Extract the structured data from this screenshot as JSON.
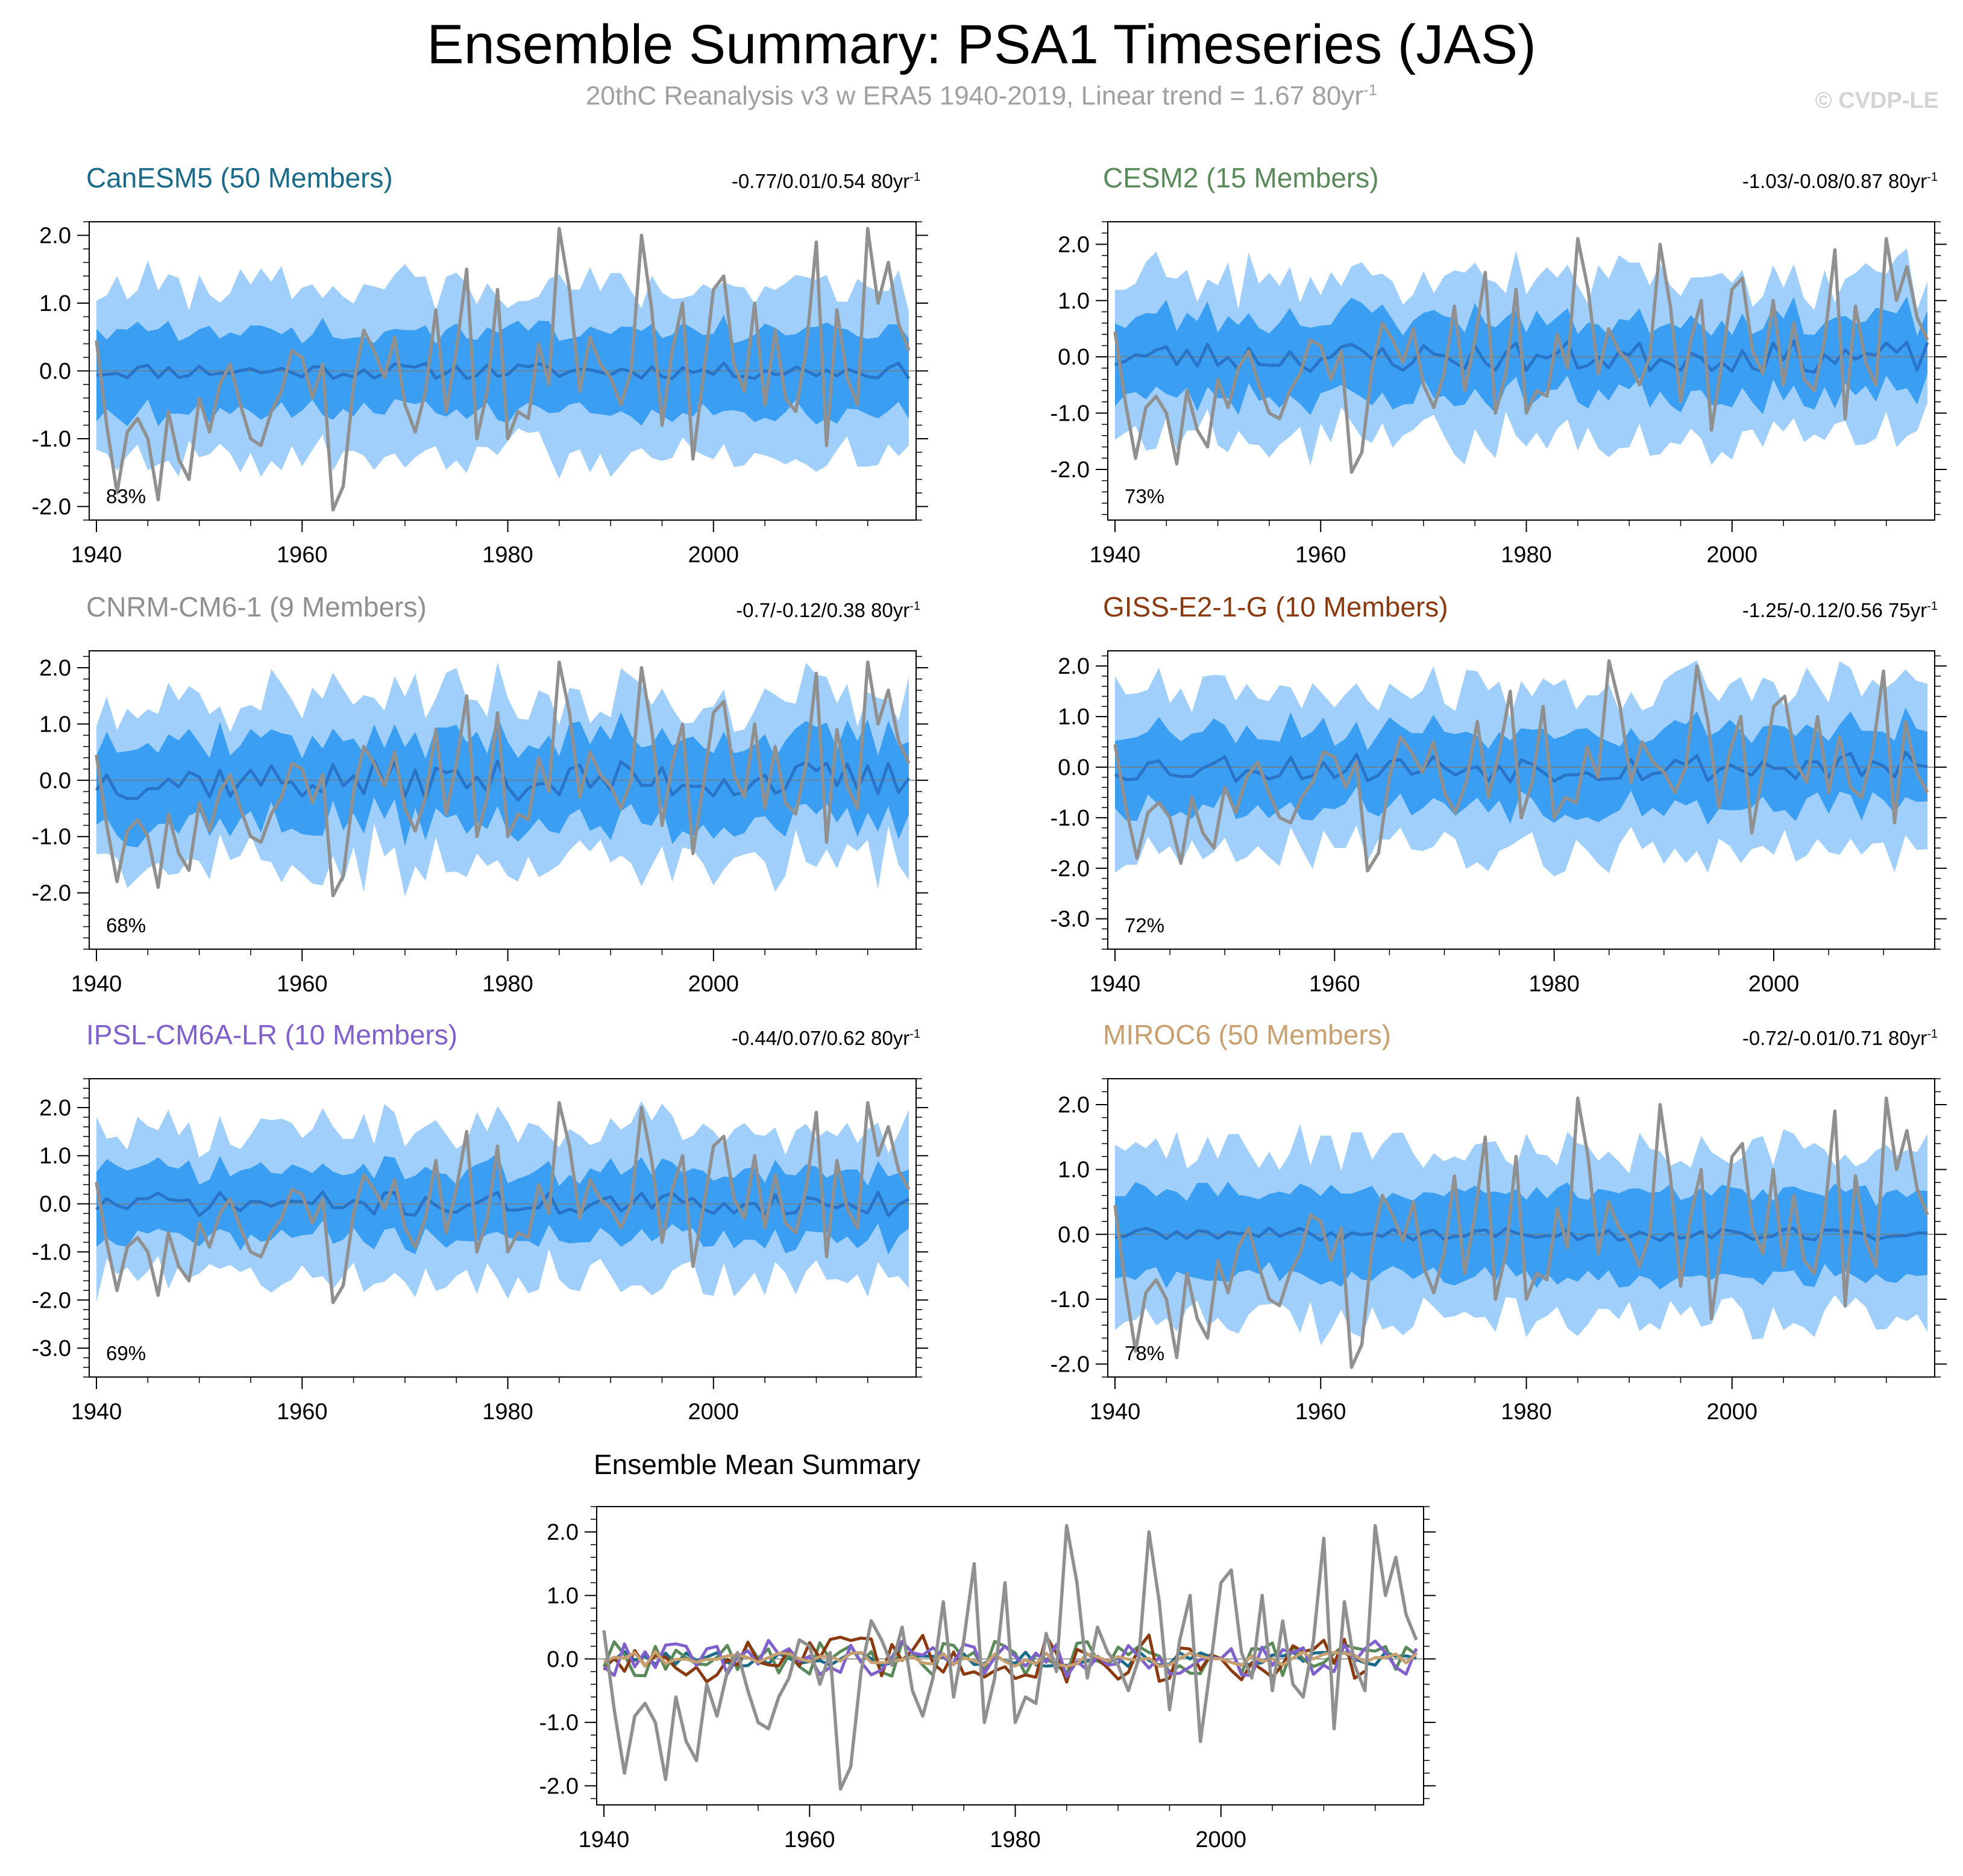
{
  "header": {
    "title": "Ensemble Summary: PSA1 Timeseries (JAS)",
    "subtitle": "20thC Reanalysis v3 w ERA5 1940-2019, Linear trend = 1.67 80yr",
    "subtitle_sup": "-1",
    "copyright": "© CVDP-LE"
  },
  "chart_data": [
    {
      "type": "line",
      "id": "canesm5",
      "title": "CanESM5 (50 Members)",
      "title_color": "#1a6b8a",
      "stats": "-0.77/0.01/0.54 80yr",
      "stats_sup": "-1",
      "percent": "83%",
      "x_range": [
        1940,
        2019
      ],
      "ylim": [
        -2.2,
        2.2
      ],
      "yticks": [
        2.0,
        1.0,
        0.0,
        -1.0,
        -2.0
      ],
      "ytick_labels": [
        "2.0",
        "1.0",
        "0.0",
        "-1.0",
        "-2.0"
      ],
      "xticks": [
        1940,
        1960,
        1980,
        2000
      ],
      "xtick_labels": [
        "1940",
        "1960",
        "1980",
        "2000"
      ],
      "outer": 1.25,
      "inner": 0.6,
      "mean_amp": 0.12,
      "seed": 11
    },
    {
      "type": "line",
      "id": "cesm2",
      "title": "CESM2 (15 Members)",
      "title_color": "#5a8a5a",
      "stats": "-1.03/-0.08/0.87 80yr",
      "stats_sup": "-1",
      "percent": "73%",
      "x_range": [
        1940,
        2019
      ],
      "ylim": [
        -2.9,
        2.4
      ],
      "yticks": [
        2.0,
        1.0,
        0.0,
        -1.0,
        -2.0
      ],
      "ytick_labels": [
        "2.0",
        "1.0",
        "0.0",
        "-1.0",
        "-2.0"
      ],
      "xticks": [
        1940,
        1960,
        1980,
        2000
      ],
      "xtick_labels": [
        "1940",
        "1960",
        "1980",
        "2000"
      ],
      "outer": 1.4,
      "inner": 0.7,
      "mean_amp": 0.28,
      "seed": 23
    },
    {
      "type": "line",
      "id": "cnrm",
      "title": "CNRM-CM6-1 (9 Members)",
      "title_color": "#909090",
      "stats": "-0.7/-0.12/0.38 80yr",
      "stats_sup": "-1",
      "percent": "68%",
      "x_range": [
        1940,
        2019
      ],
      "ylim": [
        -3.0,
        2.3
      ],
      "yticks": [
        2.0,
        1.0,
        0.0,
        -1.0,
        -2.0
      ],
      "ytick_labels": [
        "2.0",
        "1.0",
        "0.0",
        "-1.0",
        "-2.0"
      ],
      "xticks": [
        1940,
        1960,
        1980,
        2000
      ],
      "xtick_labels": [
        "1940",
        "1960",
        "1980",
        "2000"
      ],
      "outer": 1.45,
      "inner": 0.75,
      "mean_amp": 0.35,
      "seed": 37
    },
    {
      "type": "line",
      "id": "giss",
      "title": "GISS-E2-1-G (10 Members)",
      "title_color": "#8b3a0f",
      "stats": "-1.25/-0.12/0.56 75yr",
      "stats_sup": "-1",
      "percent": "72%",
      "x_range": [
        1940,
        2014
      ],
      "ylim": [
        -3.6,
        2.3
      ],
      "yticks": [
        2.0,
        1.0,
        0.0,
        -1.0,
        -2.0,
        -3.0
      ],
      "ytick_labels": [
        "2.0",
        "1.0",
        "0.0",
        "-1.0",
        "-2.0",
        "-3.0"
      ],
      "xticks": [
        1940,
        1960,
        1980,
        2000
      ],
      "xtick_labels": [
        "1940",
        "1960",
        "1980",
        "2000"
      ],
      "outer": 1.6,
      "inner": 0.75,
      "mean_amp": 0.3,
      "seed": 53
    },
    {
      "type": "line",
      "id": "ipsl",
      "title": "IPSL-CM6A-LR (10 Members)",
      "title_color": "#8060cc",
      "stats": "-0.44/0.07/0.62 80yr",
      "stats_sup": "-1",
      "percent": "69%",
      "x_range": [
        1940,
        2019
      ],
      "ylim": [
        -3.6,
        2.6
      ],
      "yticks": [
        2.0,
        1.0,
        0.0,
        -1.0,
        -2.0,
        -3.0
      ],
      "ytick_labels": [
        "2.0",
        "1.0",
        "0.0",
        "-1.0",
        "-2.0",
        "-3.0"
      ],
      "xticks": [
        1940,
        1960,
        1980,
        2000
      ],
      "xtick_labels": [
        "1940",
        "1960",
        "1980",
        "2000"
      ],
      "outer": 1.55,
      "inner": 0.7,
      "mean_amp": 0.25,
      "seed": 71
    },
    {
      "type": "line",
      "id": "miroc6",
      "title": "MIROC6 (50 Members)",
      "title_color": "#c8a070",
      "stats": "-0.72/-0.01/0.71 80yr",
      "stats_sup": "-1",
      "percent": "78%",
      "x_range": [
        1940,
        2019
      ],
      "ylim": [
        -2.2,
        2.4
      ],
      "yticks": [
        2.0,
        1.0,
        0.0,
        -1.0,
        -2.0
      ],
      "ytick_labels": [
        "2.0",
        "1.0",
        "0.0",
        "-1.0",
        "-2.0"
      ],
      "xticks": [
        1940,
        1960,
        1980,
        2000
      ],
      "xtick_labels": [
        "1940",
        "1960",
        "1980",
        "2000"
      ],
      "outer": 1.3,
      "inner": 0.65,
      "mean_amp": 0.1,
      "seed": 89
    },
    {
      "type": "line",
      "id": "ensmean",
      "title": "Ensemble Mean Summary",
      "title_color": "#000000",
      "stats": "",
      "stats_sup": "",
      "percent": "",
      "x_range": [
        1940,
        2019
      ],
      "ylim": [
        -2.3,
        2.4
      ],
      "yticks": [
        2.0,
        1.0,
        0.0,
        -1.0,
        -2.0
      ],
      "ytick_labels": [
        "2.0",
        "1.0",
        "0.0",
        "-1.0",
        "-2.0"
      ],
      "xticks": [
        1940,
        1960,
        1980,
        2000
      ],
      "xtick_labels": [
        "1940",
        "1960",
        "1980",
        "2000"
      ],
      "series_colors": [
        "#1a6b8a",
        "#5a8a5a",
        "#8b3a0f",
        "#8060cc",
        "#c8a070"
      ],
      "series_amps": [
        0.12,
        0.28,
        0.4,
        0.3,
        0.12
      ]
    }
  ],
  "observed_series": {
    "name": "20thC Reanalysis v3 w ERA5",
    "color": "#909090",
    "x_start": 1940,
    "values": [
      0.45,
      -0.8,
      -1.8,
      -0.9,
      -0.7,
      -1.0,
      -1.9,
      -0.6,
      -1.3,
      -1.6,
      -0.4,
      -0.9,
      -0.2,
      0.1,
      -0.5,
      -1.0,
      -1.1,
      -0.6,
      -0.3,
      0.3,
      0.2,
      -0.4,
      0.1,
      -2.05,
      -1.7,
      -0.2,
      0.6,
      0.3,
      -0.1,
      0.5,
      -0.5,
      -0.9,
      -0.3,
      0.9,
      -0.6,
      0.3,
      1.5,
      -1.0,
      -0.3,
      1.2,
      -1.0,
      -0.6,
      -0.7,
      0.4,
      -0.2,
      2.1,
      1.2,
      -0.3,
      0.5,
      0.1,
      -0.1,
      -0.5,
      0.0,
      2.0,
      0.9,
      -0.8,
      0.3,
      1.0,
      -1.3,
      -0.1,
      1.2,
      1.4,
      0.1,
      -0.3,
      1.0,
      -0.5,
      0.6,
      -0.4,
      -0.6,
      0.3,
      1.9,
      -1.1,
      0.9,
      -0.1,
      -0.5,
      2.1,
      1.0,
      1.6,
      0.7,
      0.3
    ]
  }
}
